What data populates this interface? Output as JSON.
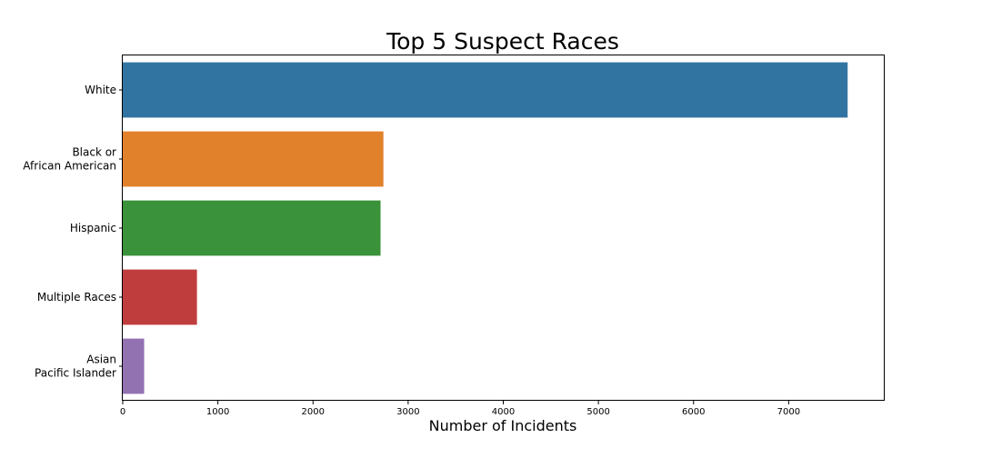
{
  "chart_data": {
    "type": "bar",
    "orientation": "horizontal",
    "title": "Top 5 Suspect Races",
    "xlabel": "Number of Incidents",
    "ylabel": "",
    "categories": [
      {
        "lines": [
          "White"
        ]
      },
      {
        "lines": [
          "Black or",
          "African American"
        ]
      },
      {
        "lines": [
          "Hispanic"
        ]
      },
      {
        "lines": [
          "Multiple Races"
        ]
      },
      {
        "lines": [
          "Asian",
          "Pacific Islander"
        ]
      }
    ],
    "values": [
      7620,
      2740,
      2710,
      780,
      225
    ],
    "colors": [
      "#3274a1",
      "#e1812c",
      "#3a923a",
      "#c03d3e",
      "#9372b2"
    ],
    "xlim": [
      0,
      8000
    ],
    "xticks": [
      0,
      1000,
      2000,
      3000,
      4000,
      5000,
      6000,
      7000
    ],
    "grid": false
  }
}
